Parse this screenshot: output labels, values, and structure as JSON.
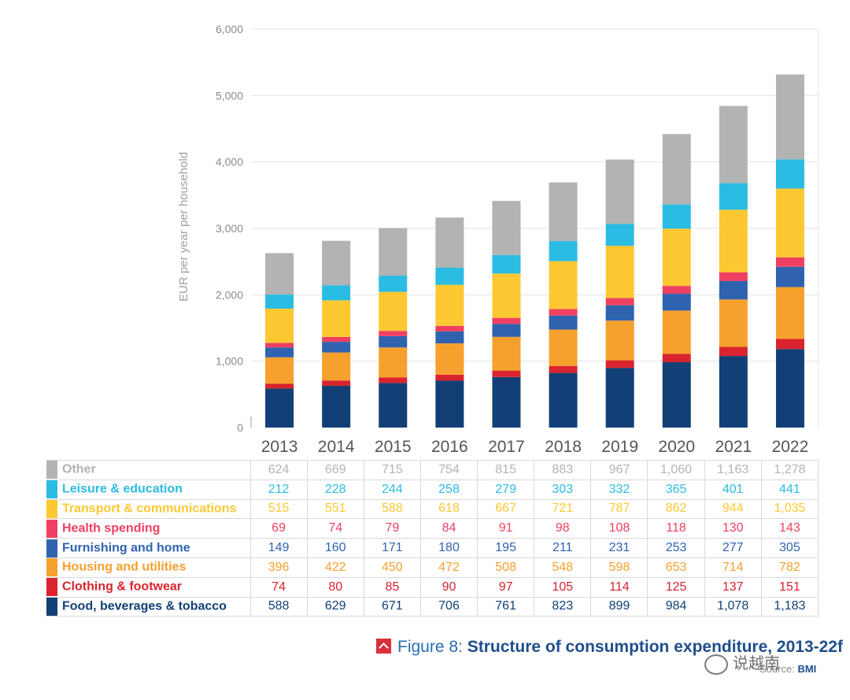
{
  "chart_data": {
    "type": "stacked-bar",
    "ylabel": "EUR per year per household",
    "ylim": [
      0,
      6000
    ],
    "yticks": [
      "0",
      "1,000",
      "2,000",
      "3,000",
      "4,000",
      "5,000",
      "6,000"
    ],
    "ytick_values": [
      0,
      1000,
      2000,
      3000,
      4000,
      5000,
      6000
    ],
    "categories": [
      "2013",
      "2014",
      "2015",
      "2016",
      "2017",
      "2018",
      "2019",
      "2020",
      "2021",
      "2022"
    ],
    "series": [
      {
        "name": "Food, beverages & tobacco",
        "color": "#124076",
        "values": [
          588,
          629,
          671,
          706,
          761,
          823,
          899,
          984,
          1078,
          1183
        ],
        "labels": [
          "588",
          "629",
          "671",
          "706",
          "761",
          "823",
          "899",
          "984",
          "1,078",
          "1,183"
        ]
      },
      {
        "name": "Clothing & footwear",
        "color": "#d9232e",
        "values": [
          74,
          80,
          85,
          90,
          97,
          105,
          114,
          125,
          137,
          151
        ],
        "labels": [
          "74",
          "80",
          "85",
          "90",
          "97",
          "105",
          "114",
          "125",
          "137",
          "151"
        ]
      },
      {
        "name": "Housing and utilities",
        "color": "#f6a02d",
        "values": [
          396,
          422,
          450,
          472,
          508,
          548,
          598,
          653,
          714,
          782
        ],
        "labels": [
          "396",
          "422",
          "450",
          "472",
          "508",
          "548",
          "598",
          "653",
          "714",
          "782"
        ]
      },
      {
        "name": "Furnishing and home",
        "color": "#2f63b0",
        "values": [
          149,
          160,
          171,
          180,
          195,
          211,
          231,
          253,
          277,
          305
        ],
        "labels": [
          "149",
          "160",
          "171",
          "180",
          "195",
          "211",
          "231",
          "253",
          "277",
          "305"
        ]
      },
      {
        "name": "Health spending",
        "color": "#ee4062",
        "values": [
          69,
          74,
          79,
          84,
          91,
          98,
          108,
          118,
          130,
          143
        ],
        "labels": [
          "69",
          "74",
          "79",
          "84",
          "91",
          "98",
          "108",
          "118",
          "130",
          "143"
        ]
      },
      {
        "name": "Transport & communications",
        "color": "#fdc832",
        "values": [
          515,
          551,
          588,
          618,
          667,
          721,
          787,
          862,
          944,
          1035
        ],
        "labels": [
          "515",
          "551",
          "588",
          "618",
          "667",
          "721",
          "787",
          "862",
          "944",
          "1,035"
        ]
      },
      {
        "name": "Leisure & education",
        "color": "#2bbce3",
        "values": [
          212,
          228,
          244,
          258,
          279,
          303,
          332,
          365,
          401,
          441
        ],
        "labels": [
          "212",
          "228",
          "244",
          "258",
          "279",
          "303",
          "332",
          "365",
          "401",
          "441"
        ]
      },
      {
        "name": "Other",
        "color": "#b3b3b3",
        "values": [
          624,
          669,
          715,
          754,
          815,
          883,
          967,
          1060,
          1163,
          1278
        ],
        "labels": [
          "624",
          "669",
          "715",
          "754",
          "815",
          "883",
          "967",
          "1,060",
          "1,163",
          "1,278"
        ]
      }
    ]
  },
  "caption": {
    "lead": "Figure 8:",
    "title": "Structure of consumption expenditure, 2013-22f"
  },
  "source": {
    "prefix": "Source:",
    "name": "BMI"
  },
  "watermark": {
    "text": "说越南"
  },
  "colors": {
    "gridline": "#e3e3e3",
    "axis": "#9a9a9a"
  }
}
